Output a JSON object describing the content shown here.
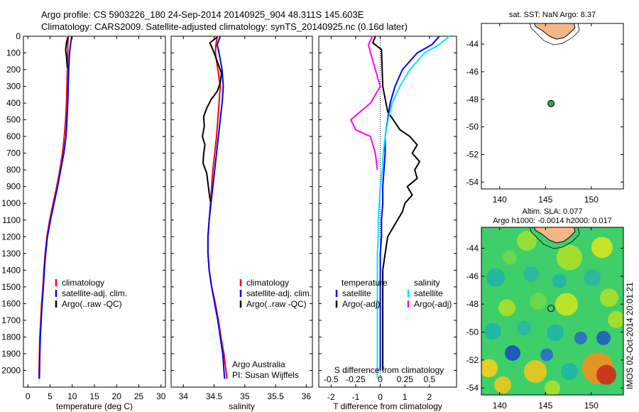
{
  "header": {
    "line1": "Argo profile: CS 5903226_180 24-Sep-2014 20140925_904 48.311S 145.603E",
    "line2": "Climatology: CARS2009. Satellite-adjusted climatology: synTS_20140925.nc (0.16d later)"
  },
  "footer": {
    "author": "Argo Australia",
    "pi": "PI: Susan Wijffels",
    "imos": "IMOS 02-Oct-2014 20:01:21"
  },
  "colors": {
    "climatology": "#ff0000",
    "satellite": "#0000ff",
    "argo": "#000000",
    "sat_diff_salinity": "#00e5ff",
    "argo_diff_salinity": "#ff00ff",
    "land": "#f6b68a",
    "float_marker": "#2eaa2e"
  },
  "chart_data": [
    {
      "type": "line",
      "name": "temperature",
      "xlabel": "temperature (deg C)",
      "ylim": [
        2100,
        0
      ],
      "xlim": [
        -1,
        31
      ],
      "xticks": [
        0,
        5,
        10,
        15,
        20,
        25,
        30
      ],
      "yticks": [
        0,
        100,
        200,
        300,
        400,
        500,
        600,
        700,
        800,
        900,
        1000,
        1100,
        1200,
        1300,
        1400,
        1500,
        1600,
        1700,
        1800,
        1900,
        2000
      ],
      "legend": [
        "climatology",
        "satellite-adj. clim.",
        "Argo(..raw -QC)"
      ],
      "legend_position": "lower-right",
      "series": [
        {
          "name": "climatology",
          "color": "#ff0000",
          "x": [
            9.1,
            9.0,
            9.0,
            8.9,
            8.8,
            8.7,
            8.5,
            8.2,
            7.8,
            7.2,
            6.5,
            5.7,
            4.9,
            4.3,
            3.9,
            3.6,
            3.4,
            3.1,
            2.9,
            2.7,
            2.6,
            2.5
          ],
          "y": [
            0,
            50,
            100,
            200,
            300,
            400,
            500,
            600,
            700,
            800,
            900,
            1000,
            1100,
            1200,
            1300,
            1400,
            1500,
            1600,
            1700,
            1800,
            1900,
            2050
          ]
        },
        {
          "name": "satellite-adj. clim.",
          "color": "#0000ff",
          "x": [
            9.9,
            9.6,
            9.4,
            9.2,
            9.1,
            9.0,
            8.8,
            8.6,
            8.1,
            7.4,
            6.7,
            5.9,
            5.1,
            4.4,
            4.0,
            3.7,
            3.5,
            3.2,
            3.0,
            2.8,
            2.7,
            2.6
          ],
          "y": [
            0,
            50,
            100,
            200,
            300,
            400,
            500,
            600,
            700,
            800,
            900,
            1000,
            1100,
            1200,
            1300,
            1400,
            1500,
            1600,
            1700,
            1800,
            1900,
            2050
          ]
        },
        {
          "name": "Argo(..raw -QC)",
          "color": "#000000",
          "x": [
            9.0,
            8.7,
            8.5,
            8.7,
            8.8,
            8.9
          ],
          "y": [
            5,
            40,
            80,
            120,
            160,
            190
          ]
        }
      ]
    },
    {
      "type": "line",
      "name": "salinity",
      "xlabel": "salinity",
      "ylim": [
        2100,
        0
      ],
      "xlim": [
        33.8,
        36.1
      ],
      "xticks": [
        34,
        34.5,
        35,
        35.5,
        36
      ],
      "legend": [
        "climatology",
        "satellite-adj. clim.",
        "Argo(..raw -QC)"
      ],
      "legend_position": "right",
      "series": [
        {
          "name": "climatology",
          "color": "#ff0000",
          "x": [
            34.55,
            34.53,
            34.52,
            34.56,
            34.6,
            34.58,
            34.56,
            34.54,
            34.51,
            34.48,
            34.46,
            34.44,
            34.42,
            34.4,
            34.4,
            34.42,
            34.46,
            34.52,
            34.57,
            34.61,
            34.66,
            34.71
          ],
          "y": [
            0,
            50,
            100,
            200,
            300,
            400,
            500,
            600,
            700,
            800,
            900,
            1000,
            1100,
            1200,
            1300,
            1400,
            1500,
            1600,
            1700,
            1800,
            1900,
            2050
          ]
        },
        {
          "name": "satellite-adj. clim.",
          "color": "#0000ff",
          "x": [
            34.6,
            34.55,
            34.58,
            34.63,
            34.65,
            34.63,
            34.6,
            34.57,
            34.54,
            34.51,
            34.48,
            34.45,
            34.42,
            34.4,
            34.4,
            34.42,
            34.46,
            34.51,
            34.56,
            34.6,
            34.64,
            34.67
          ],
          "y": [
            0,
            50,
            100,
            200,
            300,
            400,
            500,
            600,
            700,
            800,
            900,
            1000,
            1100,
            1200,
            1300,
            1400,
            1500,
            1600,
            1700,
            1800,
            1900,
            2050
          ]
        },
        {
          "name": "Argo(..raw -QC)",
          "color": "#000000",
          "x": [
            34.55,
            34.43,
            34.48,
            34.52,
            34.57,
            34.62,
            34.6,
            34.55,
            34.45,
            34.38,
            34.33,
            34.34,
            34.31,
            34.35,
            34.33,
            34.32,
            34.38,
            34.4,
            34.42,
            34.44
          ],
          "y": [
            5,
            40,
            80,
            120,
            170,
            220,
            280,
            330,
            380,
            430,
            480,
            540,
            600,
            650,
            700,
            760,
            820,
            880,
            940,
            990
          ]
        }
      ]
    },
    {
      "type": "line",
      "name": "difference",
      "xlabel": "T difference from climatology",
      "xlabel_top": "S difference from climatology",
      "ylim": [
        2100,
        0
      ],
      "xlim": [
        -2.5,
        3.1
      ],
      "xticks": [
        -2,
        -1,
        0,
        1,
        2
      ],
      "xticks_s": [
        -0.5,
        -0.25,
        0,
        0.25,
        0.5
      ],
      "legend_headers": [
        "temperature",
        "salinity"
      ],
      "legend": [
        "satellite",
        "Argo(-adj)",
        "satellite",
        "Argo(-adj)"
      ],
      "series": [
        {
          "name": "temperature satellite",
          "color": "#0000ff",
          "x": [
            2.4,
            2.1,
            1.5,
            0.9,
            0.6,
            0.4,
            0.3,
            0.2,
            0.2,
            0.15,
            0.1,
            0.1,
            0.05,
            0.05,
            0.0,
            0.0,
            0.0,
            0.0,
            0.0,
            0.0,
            0.0
          ],
          "y": [
            0,
            50,
            100,
            200,
            300,
            400,
            500,
            600,
            700,
            800,
            900,
            1000,
            1100,
            1200,
            1300,
            1400,
            1500,
            1600,
            1700,
            1800,
            2000
          ]
        },
        {
          "name": "temperature Argo(-adj)",
          "color": "#000000",
          "x": [
            -0.2,
            -0.3,
            0.05,
            0.1,
            0.3,
            0.8,
            1.2,
            1.5,
            1.3,
            1.6,
            1.4,
            1.5,
            1.1,
            1.3,
            1.0,
            0.9,
            0.7,
            0.5,
            0.3,
            0.2,
            0.1,
            0.1,
            0.1,
            0.1,
            0.1,
            0.1,
            0.1
          ],
          "y": [
            0,
            40,
            80,
            300,
            450,
            560,
            600,
            650,
            700,
            750,
            800,
            850,
            900,
            950,
            1000,
            1050,
            1100,
            1150,
            1200,
            1300,
            1400,
            1500,
            1600,
            1700,
            1800,
            1900,
            2000
          ]
        },
        {
          "name": "salinity satellite",
          "color": "#00e5ff",
          "x": [
            0.7,
            0.6,
            0.45,
            0.3,
            0.2,
            0.12,
            0.08,
            0.05,
            0.03,
            0.02,
            0.0,
            -0.01,
            -0.02,
            -0.02,
            -0.03,
            -0.03,
            -0.03,
            -0.03,
            -0.03,
            -0.03
          ],
          "y": [
            0,
            50,
            100,
            200,
            300,
            400,
            500,
            600,
            700,
            800,
            900,
            1000,
            1100,
            1200,
            1300,
            1400,
            1600,
            1800,
            1900,
            2050
          ]
        },
        {
          "name": "salinity Argo(-adj)",
          "color": "#ff00ff",
          "x": [
            -0.08,
            -0.12,
            -0.1,
            -0.05,
            0.0,
            -0.1,
            -0.2,
            -0.3,
            -0.25,
            -0.1,
            -0.05,
            -0.03
          ],
          "y": [
            0,
            50,
            100,
            200,
            300,
            400,
            450,
            500,
            560,
            600,
            700,
            800
          ]
        }
      ]
    },
    {
      "type": "scatter",
      "name": "sst-map",
      "title": "sat. SST: NaN Argo: 8.37",
      "xlim": [
        138,
        153.5
      ],
      "ylim": [
        -54.5,
        -42.5
      ],
      "xticks": [
        140,
        145,
        150
      ],
      "yticks": [
        -44,
        -46,
        -48,
        -50,
        -52,
        -54
      ],
      "float_position": {
        "lon": 145.6,
        "lat": -48.31
      }
    },
    {
      "type": "heatmap",
      "name": "sla-map",
      "title_line1": "Altim. SLA: 0.077",
      "title_line2": "Argo h1000: -0.0014 h2000: 0.017",
      "xlim": [
        138,
        153.5
      ],
      "ylim": [
        -54.5,
        -42.5
      ],
      "xticks": [
        140,
        145,
        150
      ],
      "yticks": [
        -44,
        -46,
        -48,
        -50,
        -52,
        -54
      ],
      "float_position": {
        "lon": 145.6,
        "lat": -48.31
      }
    }
  ]
}
